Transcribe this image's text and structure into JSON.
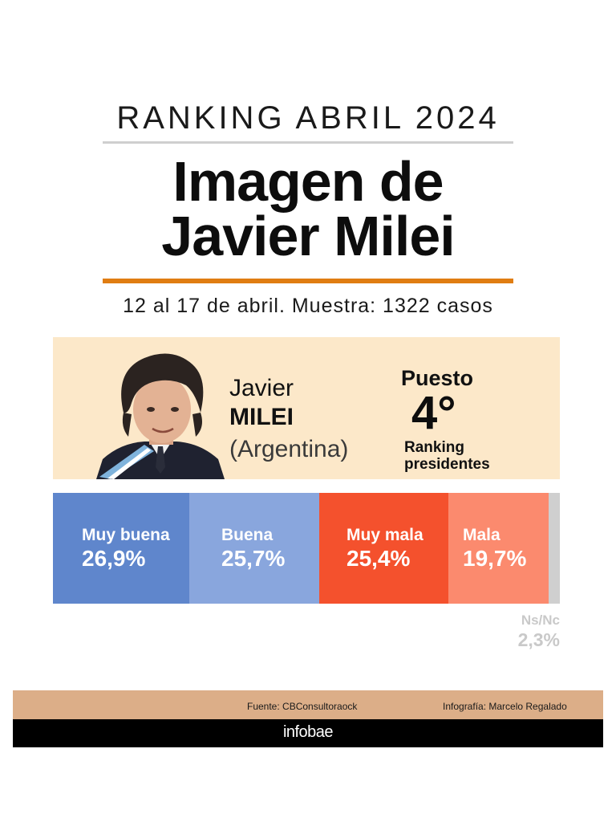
{
  "header": {
    "kicker": "RANKING ABRIL 2024",
    "title_line1": "Imagen de",
    "title_line2": "Javier Milei",
    "subtitle": "12 al 17 de abril. Muestra: 1322 casos"
  },
  "profile": {
    "first_name": "Javier",
    "last_name": "MILEI",
    "country": "(Argentina)",
    "rank_label": "Puesto",
    "rank_value": "4°",
    "rank_caption_line1": "Ranking",
    "rank_caption_line2": "presidentes"
  },
  "chart_data": {
    "type": "bar",
    "orientation": "horizontal-stacked",
    "unit": "%",
    "categories": [
      "Muy buena",
      "Buena",
      "Muy mala",
      "Mala",
      "Ns/Nc"
    ],
    "values": [
      26.9,
      25.7,
      25.4,
      19.7,
      2.3
    ],
    "value_labels": [
      "26,9%",
      "25,7%",
      "25,4%",
      "19,7%",
      "2,3%"
    ],
    "colors": [
      "#5f86cc",
      "#89a6dd",
      "#f4512d",
      "#fb8a6e",
      "#cfcfcf"
    ],
    "label_color": "#ffffff",
    "outside_label_color": "#c9c9c9"
  },
  "footer": {
    "source": "Fuente: CBConsultoraock",
    "credit": "Infografía: Marcelo Regalado",
    "brand": "infobae"
  },
  "colors": {
    "accent_orange": "#e07d12",
    "profile_bg": "#fce8c9",
    "footer_band": "#dcae88"
  }
}
